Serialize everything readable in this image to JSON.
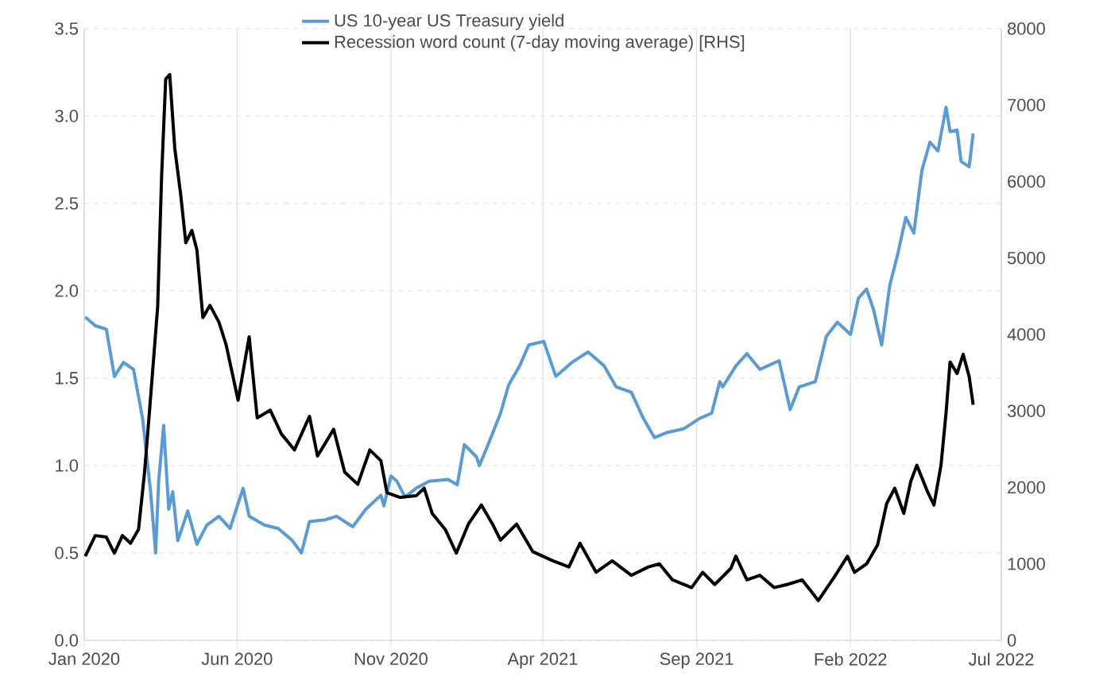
{
  "chart_data": {
    "type": "line",
    "xlim": [
      "2020-01-01",
      "2022-07-01"
    ],
    "xticks": [
      {
        "value": "2020-01-01",
        "label": "Jan 2020"
      },
      {
        "value": "2020-06-01",
        "label": "Jun 2020"
      },
      {
        "value": "2020-11-01",
        "label": "Nov 2020"
      },
      {
        "value": "2021-04-01",
        "label": "Apr 2021"
      },
      {
        "value": "2021-09-01",
        "label": "Sep 2021"
      },
      {
        "value": "2022-02-01",
        "label": "Feb 2022"
      },
      {
        "value": "2022-07-01",
        "label": "Jul 2022"
      }
    ],
    "ylim": [
      0,
      3.5
    ],
    "yticks": [
      {
        "value": 0,
        "label": "0.0"
      },
      0.5,
      {
        "value": 1,
        "label": "1.0"
      },
      1.5,
      {
        "value": 2,
        "label": "2.0"
      },
      2.5,
      {
        "value": 3,
        "label": "3.0"
      },
      3.5
    ],
    "y2lim": [
      0,
      8000
    ],
    "y2ticks": [
      0,
      1000,
      2000,
      3000,
      4000,
      5000,
      6000,
      7000,
      8000
    ],
    "grid": true,
    "legend": "top",
    "series": [
      {
        "name": "US 10-year US Treasury yield",
        "color": "#5b9bd5",
        "x": [
          "2020-01-02",
          "2020-01-12",
          "2020-01-23",
          "2020-01-31",
          "2020-02-09",
          "2020-02-19",
          "2020-02-28",
          "2020-03-07",
          "2020-03-12",
          "2020-03-15",
          "2020-03-20",
          "2020-03-25",
          "2020-03-29",
          "2020-04-03",
          "2020-04-13",
          "2020-04-22",
          "2020-05-02",
          "2020-05-14",
          "2020-05-25",
          "2020-06-07",
          "2020-06-13",
          "2020-06-28",
          "2020-07-12",
          "2020-07-26",
          "2020-08-04",
          "2020-08-12",
          "2020-08-28",
          "2020-09-08",
          "2020-09-24",
          "2020-10-07",
          "2020-10-22",
          "2020-10-25",
          "2020-11-01",
          "2020-11-07",
          "2020-11-15",
          "2020-11-26",
          "2020-12-09",
          "2020-12-28",
          "2021-01-06",
          "2021-01-13",
          "2021-01-25",
          "2021-01-28",
          "2021-02-07",
          "2021-02-18",
          "2021-02-26",
          "2021-03-09",
          "2021-03-18",
          "2021-04-02",
          "2021-04-14",
          "2021-04-30",
          "2021-05-16",
          "2021-06-01",
          "2021-06-13",
          "2021-06-28",
          "2021-07-10",
          "2021-07-21",
          "2021-08-03",
          "2021-08-19",
          "2021-09-04",
          "2021-09-16",
          "2021-09-24",
          "2021-09-27",
          "2021-10-10",
          "2021-10-21",
          "2021-11-03",
          "2021-11-22",
          "2021-12-03",
          "2021-12-12",
          "2021-12-28",
          "2022-01-08",
          "2022-01-19",
          "2022-02-01",
          "2022-02-09",
          "2022-02-17",
          "2022-02-24",
          "2022-03-04",
          "2022-03-12",
          "2022-03-20",
          "2022-03-28",
          "2022-04-05",
          "2022-04-13",
          "2022-04-21",
          "2022-04-29",
          "2022-05-07",
          "2022-05-11",
          "2022-05-18",
          "2022-05-22",
          "2022-05-30",
          "2022-06-03"
        ],
        "values": [
          1.85,
          1.8,
          1.78,
          1.51,
          1.59,
          1.55,
          1.27,
          0.85,
          0.5,
          0.91,
          1.23,
          0.75,
          0.85,
          0.57,
          0.74,
          0.55,
          0.66,
          0.71,
          0.64,
          0.87,
          0.71,
          0.66,
          0.64,
          0.57,
          0.5,
          0.68,
          0.69,
          0.71,
          0.65,
          0.75,
          0.83,
          0.77,
          0.94,
          0.91,
          0.82,
          0.87,
          0.91,
          0.92,
          0.89,
          1.12,
          1.05,
          1.0,
          1.14,
          1.3,
          1.46,
          1.57,
          1.69,
          1.71,
          1.51,
          1.59,
          1.65,
          1.57,
          1.45,
          1.42,
          1.27,
          1.16,
          1.19,
          1.21,
          1.27,
          1.3,
          1.48,
          1.45,
          1.57,
          1.64,
          1.55,
          1.6,
          1.32,
          1.45,
          1.48,
          1.74,
          1.82,
          1.75,
          1.96,
          2.01,
          1.89,
          1.69,
          2.03,
          2.21,
          2.42,
          2.33,
          2.69,
          2.85,
          2.8,
          3.05,
          2.91,
          2.92,
          2.74,
          2.71,
          2.9
        ]
      },
      {
        "name": "Recession word count (7-day moving average) [RHS]",
        "color": "#000000",
        "axis": "y2",
        "x": [
          "2020-01-02",
          "2020-01-12",
          "2020-01-23",
          "2020-01-31",
          "2020-02-08",
          "2020-02-16",
          "2020-02-24",
          "2020-03-01",
          "2020-03-07",
          "2020-03-14",
          "2020-03-18",
          "2020-03-22",
          "2020-03-26",
          "2020-03-31",
          "2020-04-06",
          "2020-04-11",
          "2020-04-17",
          "2020-04-22",
          "2020-04-28",
          "2020-05-05",
          "2020-05-14",
          "2020-05-21",
          "2020-06-02",
          "2020-06-13",
          "2020-06-21",
          "2020-07-04",
          "2020-07-15",
          "2020-07-28",
          "2020-08-12",
          "2020-08-20",
          "2020-09-05",
          "2020-09-16",
          "2020-09-29",
          "2020-10-11",
          "2020-10-22",
          "2020-10-28",
          "2020-11-10",
          "2020-11-26",
          "2020-12-04",
          "2020-12-12",
          "2020-12-25",
          "2021-01-05",
          "2021-01-17",
          "2021-01-30",
          "2021-02-10",
          "2021-02-18",
          "2021-03-06",
          "2021-03-22",
          "2021-04-11",
          "2021-04-27",
          "2021-05-08",
          "2021-05-24",
          "2021-06-09",
          "2021-06-28",
          "2021-07-15",
          "2021-07-26",
          "2021-08-08",
          "2021-08-27",
          "2021-09-07",
          "2021-09-19",
          "2021-10-05",
          "2021-10-10",
          "2021-10-21",
          "2021-11-03",
          "2021-11-17",
          "2021-11-30",
          "2021-12-15",
          "2021-12-31",
          "2022-01-16",
          "2022-01-29",
          "2022-02-05",
          "2022-02-17",
          "2022-02-28",
          "2022-03-09",
          "2022-03-17",
          "2022-03-26",
          "2022-04-02",
          "2022-04-08",
          "2022-04-19",
          "2022-04-25",
          "2022-05-02",
          "2022-05-07",
          "2022-05-11",
          "2022-05-18",
          "2022-05-24",
          "2022-05-30",
          "2022-06-03"
        ],
        "values": [
          1100,
          1370,
          1350,
          1140,
          1370,
          1270,
          1450,
          2200,
          3180,
          4360,
          6090,
          7340,
          7400,
          6440,
          5820,
          5200,
          5360,
          5110,
          4220,
          4380,
          4160,
          3870,
          3140,
          3970,
          2910,
          3010,
          2700,
          2490,
          2930,
          2410,
          2760,
          2200,
          2040,
          2490,
          2350,
          1930,
          1870,
          1890,
          1990,
          1660,
          1450,
          1140,
          1520,
          1770,
          1520,
          1310,
          1520,
          1160,
          1040,
          960,
          1270,
          890,
          1040,
          850,
          960,
          1000,
          790,
          690,
          890,
          730,
          940,
          1100,
          790,
          850,
          690,
          730,
          790,
          520,
          830,
          1100,
          890,
          1000,
          1250,
          1790,
          1990,
          1660,
          2080,
          2290,
          1930,
          1770,
          2290,
          2970,
          3640,
          3490,
          3740,
          3450,
          3080
        ]
      }
    ]
  }
}
